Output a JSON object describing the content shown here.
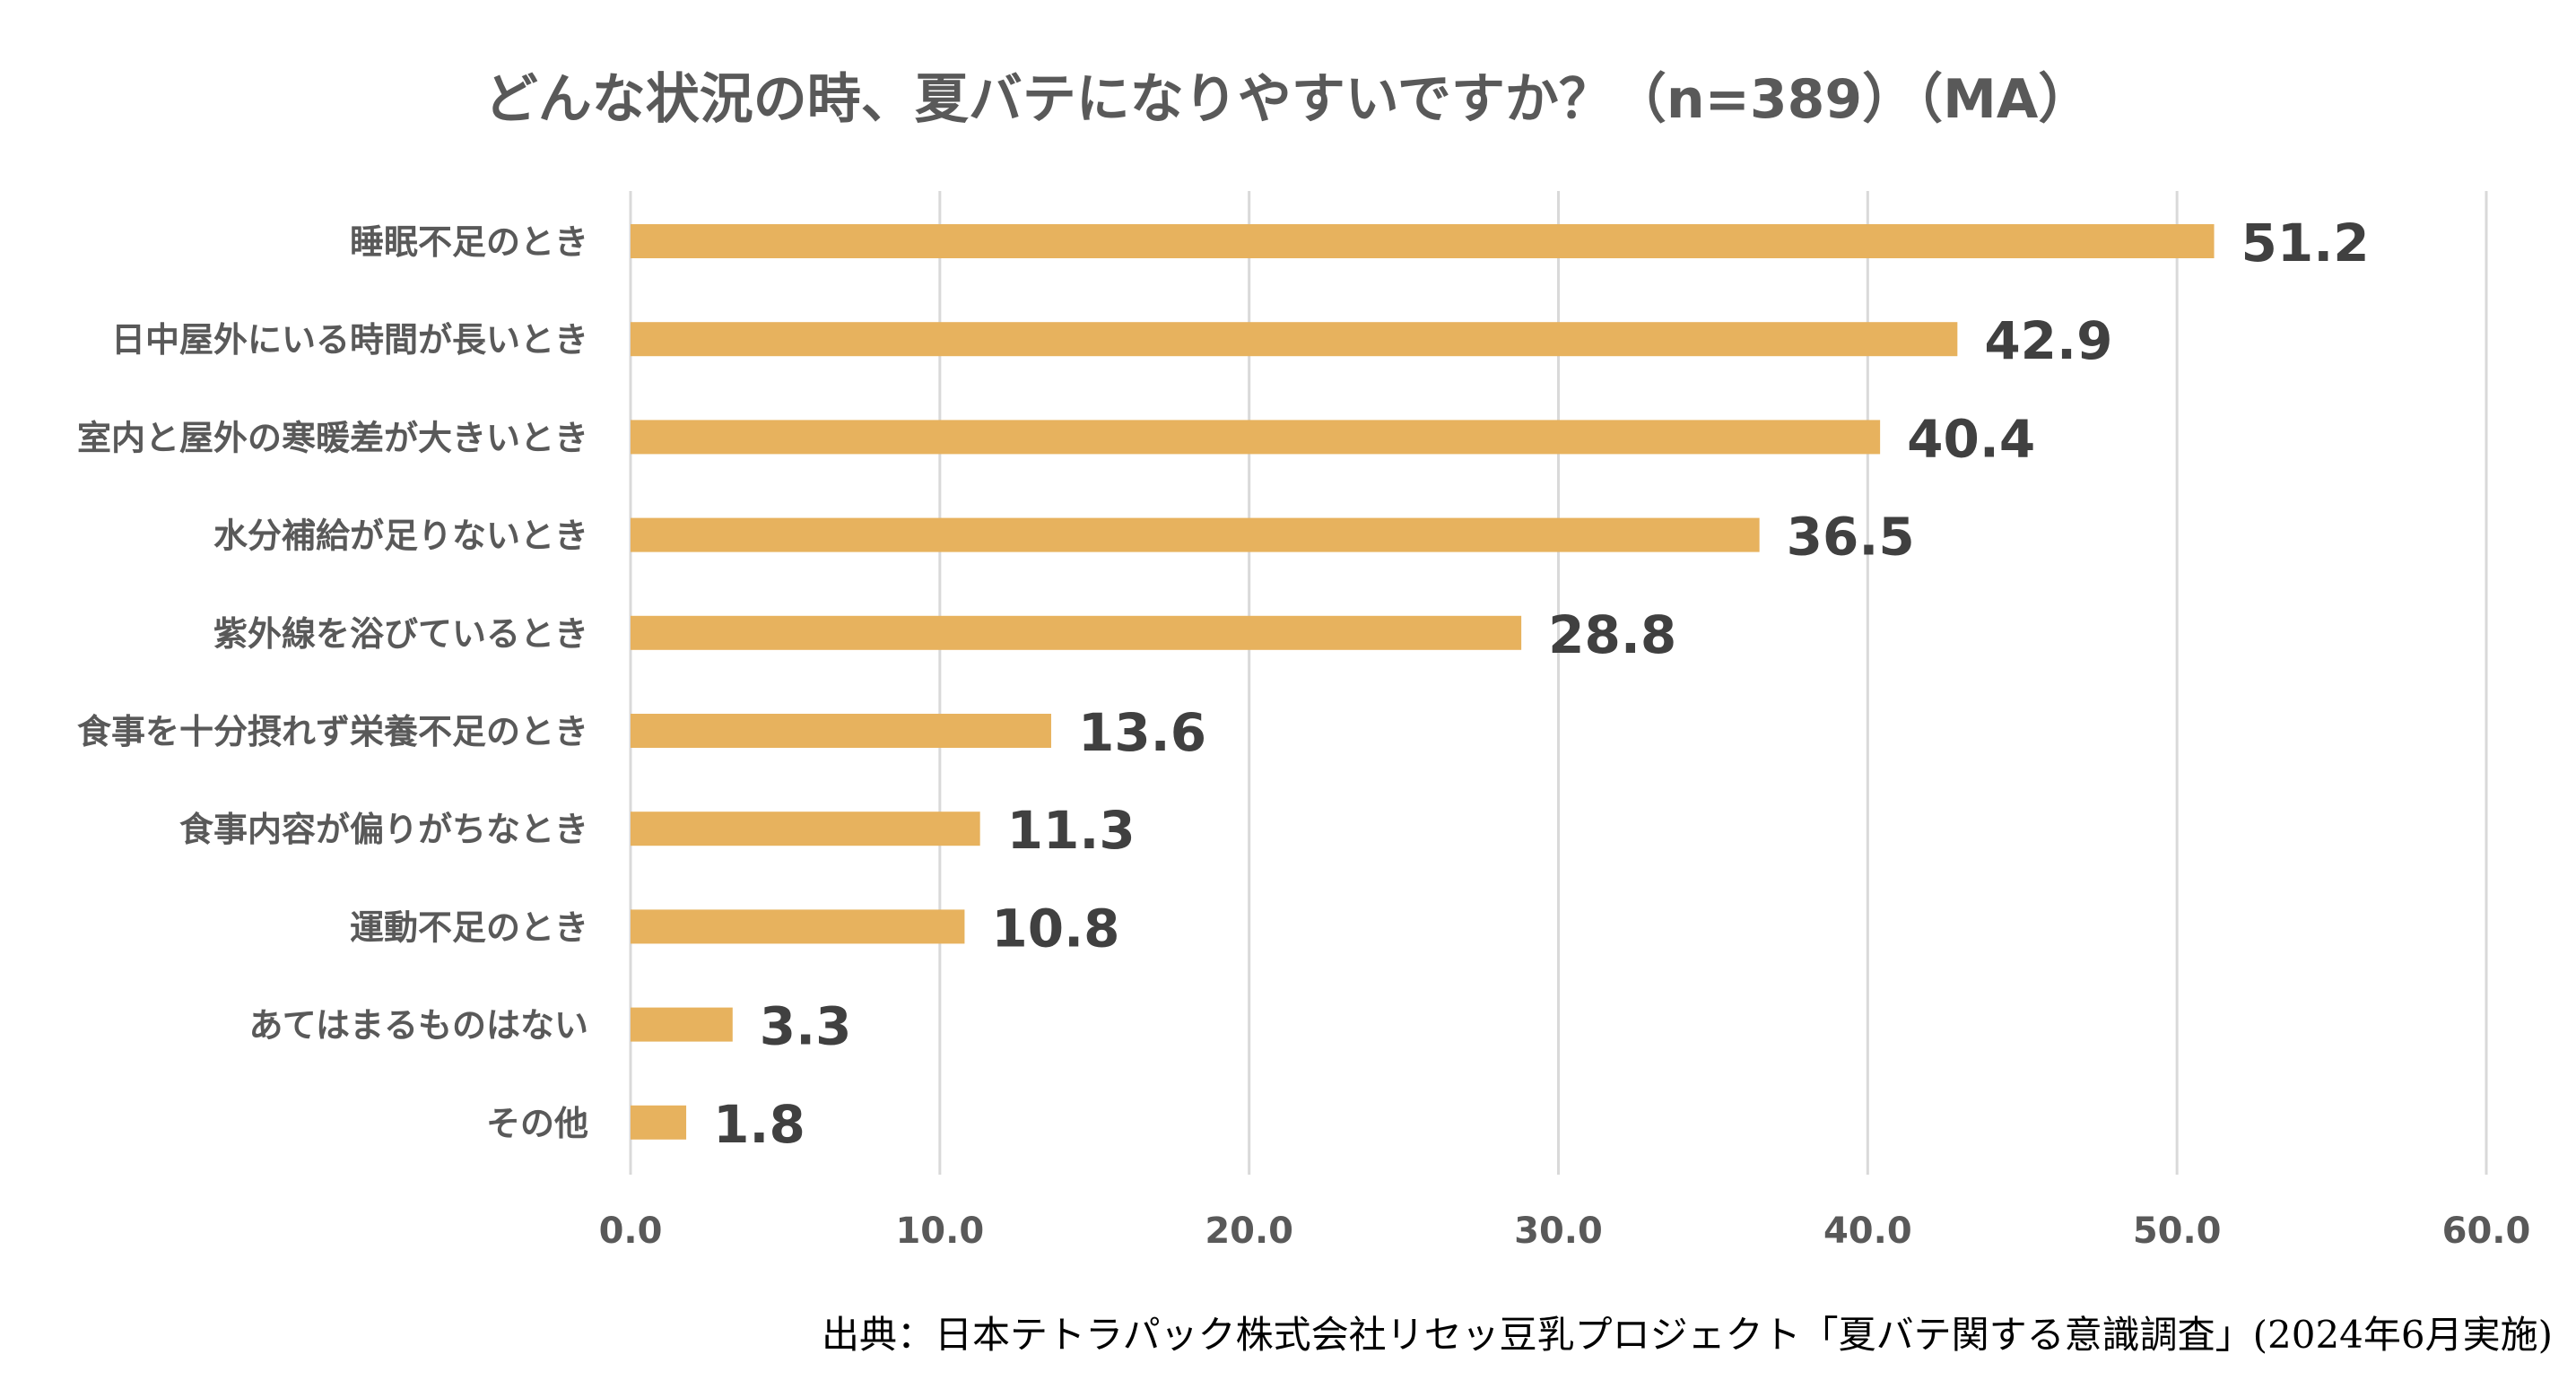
{
  "chart_data": {
    "type": "bar",
    "orientation": "horizontal",
    "title": "どんな状況の時、夏バテになりやすいですか？（n=389）（MA）",
    "categories": [
      "睡眠不足のとき",
      "日中屋外にいる時間が長いとき",
      "室内と屋外の寒暖差が大きいとき",
      "水分補給が足りないとき",
      "紫外線を浴びているとき",
      "食事を十分摂れず栄養不足のとき",
      "食事内容が偏りがちなとき",
      "運動不足のとき",
      "あてはまるものはない",
      "その他"
    ],
    "values": [
      51.2,
      42.9,
      40.4,
      36.5,
      28.8,
      13.6,
      11.3,
      10.8,
      3.3,
      1.8
    ],
    "value_labels": [
      "51.2",
      "42.9",
      "40.4",
      "36.5",
      "28.8",
      "13.6",
      "11.3",
      "10.8",
      "3.3",
      "1.8"
    ],
    "xlim": [
      0,
      60
    ],
    "xticks": [
      "0.0",
      "10.0",
      "20.0",
      "30.0",
      "40.0",
      "50.0",
      "60.0"
    ],
    "xlabel": "",
    "ylabel": "",
    "grid": true,
    "bar_color": "#E7B25E"
  },
  "source": "出典：日本テトラパック株式会社リセッ豆乳プロジェクト「夏バテ関する意識調査」(2024年6月実施)"
}
